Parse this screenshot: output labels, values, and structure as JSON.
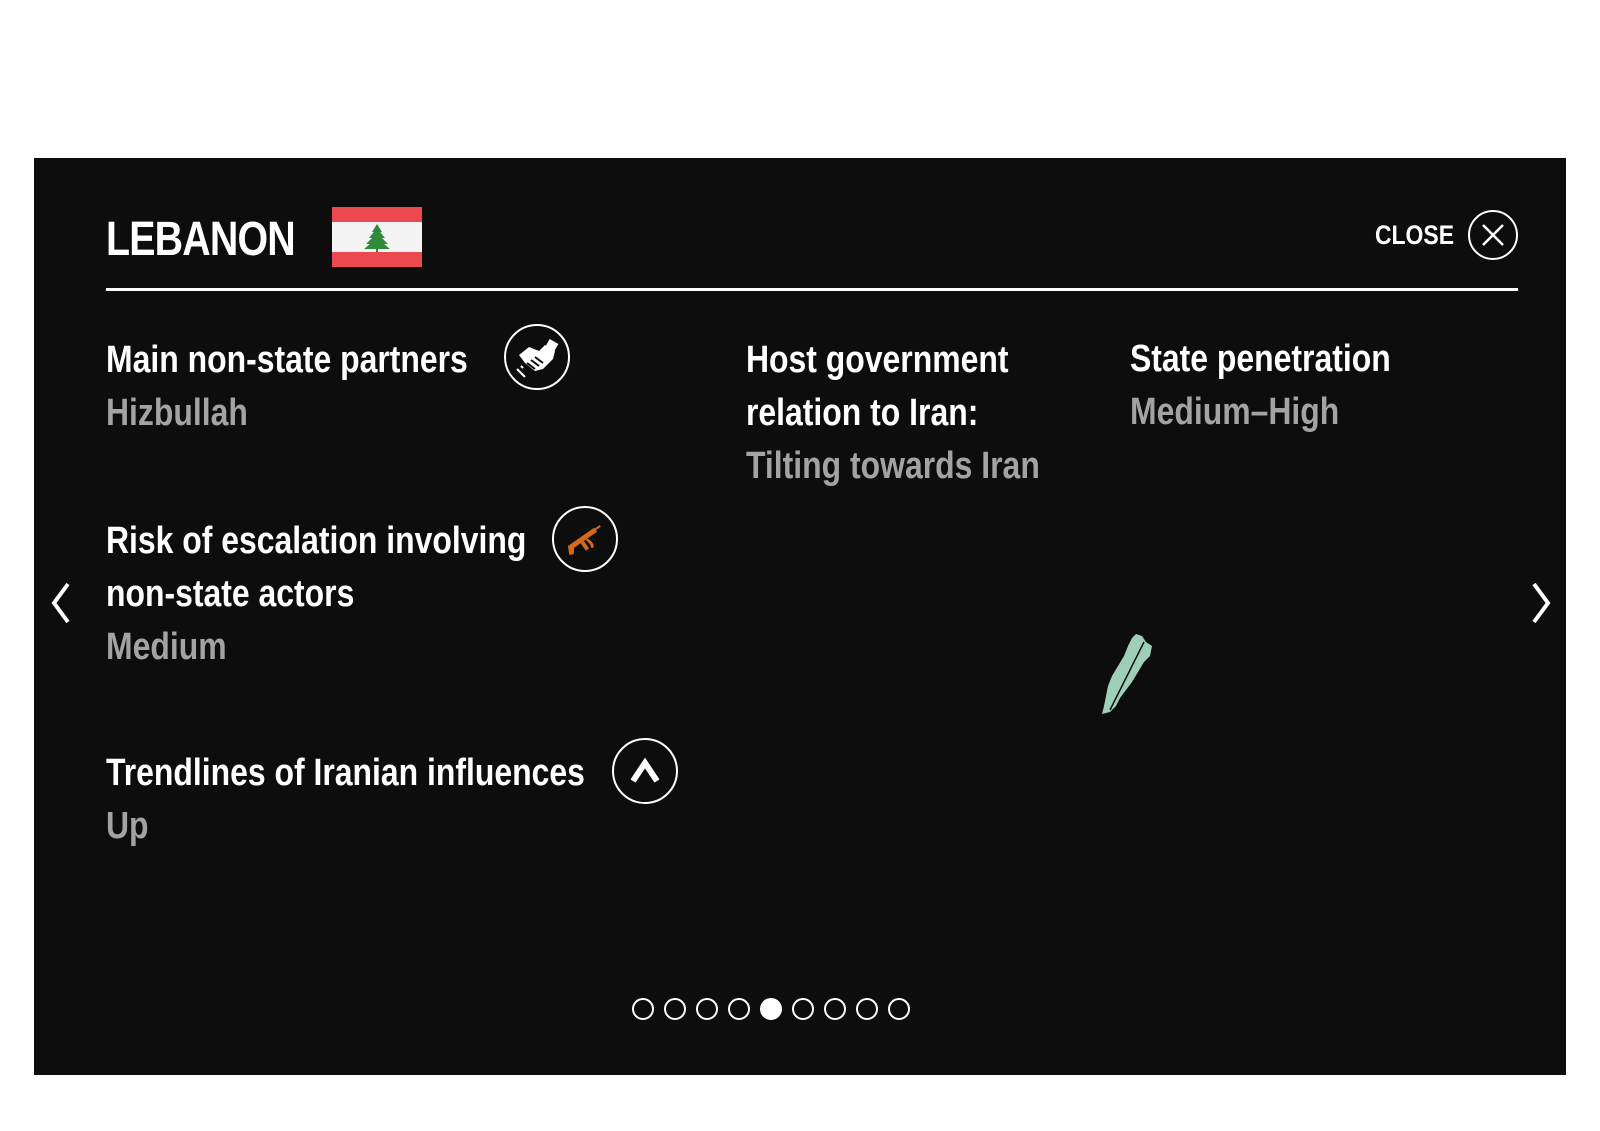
{
  "header": {
    "country": "LEBANON",
    "close_label": "CLOSE"
  },
  "colors": {
    "flag_red": "#ea4a4f",
    "cedar_green": "#2e8b3a",
    "rifle_orange": "#d66a1c",
    "map_green": "#9ecfb8",
    "value_gray": "#a3a3a3"
  },
  "sections": {
    "partners": {
      "label": "Main non-state partners",
      "value": "Hizbullah",
      "icon": "handshake-icon"
    },
    "host": {
      "label_line1": "Host government",
      "label_line2": "relation to Iran:",
      "value": "Tilting towards Iran"
    },
    "penetration": {
      "label": "State penetration",
      "value": "Medium–High"
    },
    "escalation": {
      "label_line1": "Risk of escalation involving",
      "label_line2": "non-state actors",
      "value": "Medium",
      "icon": "rifle-icon"
    },
    "trend": {
      "label": "Trendlines of Iranian influences",
      "value": "Up",
      "icon": "arrow-up-icon"
    }
  },
  "pagination": {
    "total": 9,
    "active": 5
  }
}
